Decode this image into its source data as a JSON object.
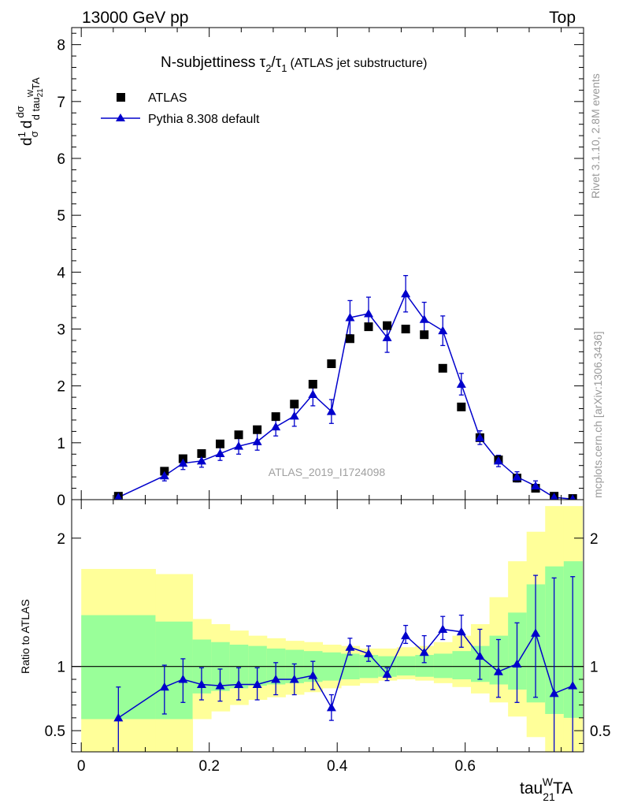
{
  "header": {
    "left": "13000 GeV pp",
    "right": "Top"
  },
  "side_labels": {
    "rivet": "Rivet 3.1.10,  2.8M events",
    "mcplots": "mcplots.cern.ch [arXiv:1306.3436]"
  },
  "watermark": "ATLAS_2019_I1724098",
  "chart_data": [
    {
      "type": "scatter",
      "panel": "main",
      "title": "N-subjettiness τ2/τ1 (ATLAS jet substructure)",
      "title_main": "N-subjettiness ",
      "title_paren": "(ATLAS jet substructure)",
      "ylabel": "1/σ dσ/d tau_21^W TA",
      "ylim": [
        0,
        8.3
      ],
      "xlim": [
        -0.015,
        0.785
      ],
      "yticks": [
        0,
        1,
        2,
        3,
        4,
        5,
        6,
        7,
        8
      ],
      "ytick_labels": [
        "0",
        "1",
        "2",
        "3",
        "4",
        "5",
        "6",
        "7",
        "8"
      ],
      "legend_position": "top-left",
      "legend": [
        "ATLAS",
        "Pythia 8.308 default"
      ],
      "series": [
        {
          "name": "ATLAS",
          "marker": "square",
          "color": "#000000",
          "x": [
            0.058,
            0.13,
            0.159,
            0.188,
            0.217,
            0.246,
            0.275,
            0.304,
            0.333,
            0.362,
            0.391,
            0.42,
            0.449,
            0.478,
            0.507,
            0.536,
            0.565,
            0.594,
            0.623,
            0.652,
            0.681,
            0.71,
            0.739,
            0.768
          ],
          "y": [
            0.06,
            0.5,
            0.72,
            0.81,
            0.98,
            1.14,
            1.23,
            1.46,
            1.68,
            2.03,
            2.39,
            2.83,
            3.04,
            3.06,
            3.0,
            2.9,
            2.31,
            1.63,
            1.09,
            0.7,
            0.38,
            0.2,
            0.06,
            0.02
          ]
        },
        {
          "name": "Pythia 8.308 default",
          "marker": "triangle",
          "color": "#0000cc",
          "x": [
            0.058,
            0.13,
            0.159,
            0.188,
            0.217,
            0.246,
            0.275,
            0.304,
            0.333,
            0.362,
            0.391,
            0.42,
            0.449,
            0.478,
            0.507,
            0.536,
            0.565,
            0.594,
            0.623,
            0.652,
            0.681,
            0.71,
            0.739,
            0.768
          ],
          "y": [
            0.04,
            0.42,
            0.64,
            0.68,
            0.81,
            0.94,
            1.02,
            1.28,
            1.47,
            1.85,
            1.55,
            3.2,
            3.27,
            2.85,
            3.62,
            3.17,
            2.97,
            2.03,
            1.09,
            0.68,
            0.4,
            0.24,
            0.04,
            0.01
          ],
          "err": [
            0.04,
            0.09,
            0.11,
            0.11,
            0.12,
            0.14,
            0.15,
            0.16,
            0.18,
            0.2,
            0.21,
            0.3,
            0.29,
            0.26,
            0.32,
            0.3,
            0.26,
            0.19,
            0.12,
            0.1,
            0.09,
            0.09,
            0.04,
            0.02
          ]
        }
      ]
    },
    {
      "type": "line",
      "panel": "ratio",
      "xlabel": "tau_21^W TA",
      "ylabel": "Ratio to ATLAS",
      "ylim": [
        0.335,
        2.3
      ],
      "xlim": [
        -0.015,
        0.785
      ],
      "yticks": [
        0.5,
        1,
        2
      ],
      "ytick_labels": [
        "0.5",
        "1",
        "2"
      ],
      "xticks": [
        0,
        0.2,
        0.4,
        0.6
      ],
      "xtick_labels": [
        "0",
        "0.2",
        "0.4",
        "0.6"
      ],
      "bands": {
        "bin_edges": [
          0.0,
          0.116,
          0.174,
          0.203,
          0.232,
          0.261,
          0.29,
          0.319,
          0.348,
          0.377,
          0.406,
          0.435,
          0.464,
          0.493,
          0.522,
          0.551,
          0.58,
          0.609,
          0.638,
          0.667,
          0.696,
          0.725,
          0.754,
          0.783
        ],
        "yellow_low": [
          0.335,
          0.335,
          0.59,
          0.65,
          0.7,
          0.74,
          0.76,
          0.78,
          0.8,
          0.83,
          0.85,
          0.87,
          0.89,
          0.9,
          0.89,
          0.87,
          0.84,
          0.79,
          0.72,
          0.61,
          0.45,
          0.335,
          0.335
        ],
        "green_low": [
          0.59,
          0.59,
          0.79,
          0.81,
          0.83,
          0.85,
          0.86,
          0.87,
          0.88,
          0.89,
          0.9,
          0.91,
          0.92,
          0.93,
          0.92,
          0.91,
          0.9,
          0.88,
          0.86,
          0.82,
          0.72,
          0.63,
          0.6
        ],
        "green_high": [
          1.4,
          1.35,
          1.21,
          1.19,
          1.17,
          1.16,
          1.14,
          1.13,
          1.12,
          1.11,
          1.1,
          1.09,
          1.08,
          1.08,
          1.09,
          1.1,
          1.12,
          1.16,
          1.24,
          1.42,
          1.64,
          1.78,
          1.82
        ],
        "yellow_high": [
          1.76,
          1.72,
          1.37,
          1.33,
          1.28,
          1.24,
          1.22,
          1.2,
          1.19,
          1.17,
          1.16,
          1.14,
          1.14,
          1.15,
          1.16,
          1.19,
          1.24,
          1.33,
          1.54,
          1.82,
          2.05,
          2.25,
          2.25
        ],
        "yellow_color": "#ffff99",
        "green_color": "#99ff99"
      },
      "series": [
        {
          "name": "Pythia 8.308 default",
          "color": "#0000cc",
          "x": [
            0.058,
            0.13,
            0.159,
            0.188,
            0.217,
            0.246,
            0.275,
            0.304,
            0.333,
            0.362,
            0.391,
            0.42,
            0.449,
            0.478,
            0.507,
            0.536,
            0.565,
            0.594,
            0.623,
            0.652,
            0.681,
            0.71,
            0.739,
            0.768
          ],
          "y": [
            0.6,
            0.84,
            0.9,
            0.86,
            0.85,
            0.86,
            0.86,
            0.9,
            0.9,
            0.93,
            0.68,
            1.15,
            1.1,
            0.94,
            1.24,
            1.11,
            1.29,
            1.27,
            1.08,
            0.96,
            1.02,
            1.26,
            0.79,
            0.85
          ],
          "err_low": [
            0.6,
            0.21,
            0.18,
            0.12,
            0.12,
            0.12,
            0.12,
            0.12,
            0.12,
            0.11,
            0.1,
            0.06,
            0.06,
            0.05,
            0.06,
            0.08,
            0.08,
            0.12,
            0.18,
            0.2,
            0.3,
            0.5,
            0.79,
            0.85
          ],
          "err_high": [
            0.24,
            0.17,
            0.16,
            0.13,
            0.13,
            0.13,
            0.13,
            0.13,
            0.12,
            0.11,
            0.1,
            0.07,
            0.06,
            0.05,
            0.08,
            0.13,
            0.1,
            0.13,
            0.21,
            0.25,
            0.32,
            0.45,
            0.9,
            0.85
          ]
        }
      ]
    }
  ]
}
